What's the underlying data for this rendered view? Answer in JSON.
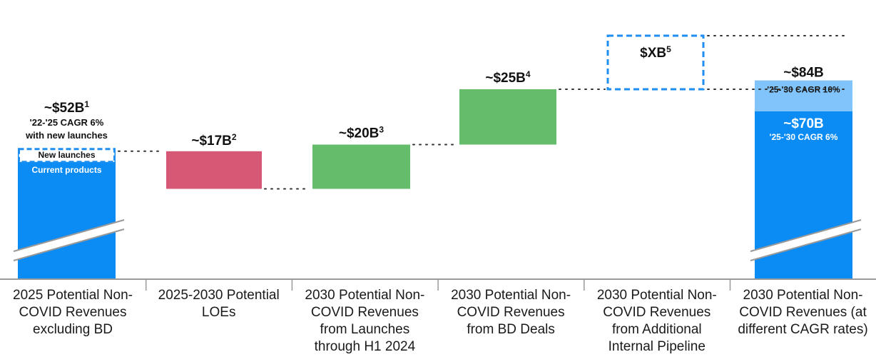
{
  "colors": {
    "blue": "#0b8cf5",
    "light_blue": "#80c4fb",
    "red": "#d75874",
    "green": "#65bd6c",
    "dashed": "#1e8ef0",
    "text": "#111111"
  },
  "chart_data": {
    "type": "waterfall",
    "units": "USD billions",
    "categories": [
      "2025 Potential Non-COVID Revenues excluding BD",
      "2025-2030 Potential LOEs",
      "2030 Potential Non-COVID Revenues from Launches through H1 2024",
      "2030 Potential Non-COVID Revenues from BD Deals",
      "2030 Potential Non-COVID Revenues from Additional Internal Pipeline",
      "2030 Potential Non-COVID Revenues (at different CAGR rates)"
    ],
    "category_lines": [
      [
        "2025 Potential Non-",
        "COVID Revenues",
        "excluding BD"
      ],
      [
        "2025-2030 Potential",
        "LOEs"
      ],
      [
        "2030 Potential Non-",
        "COVID Revenues",
        "from Launches",
        "through H1 2024"
      ],
      [
        "2030 Potential Non-",
        "COVID Revenues",
        "from BD Deals"
      ],
      [
        "2030 Potential Non-",
        "COVID Revenues",
        "from Additional",
        "Internal Pipeline"
      ],
      [
        "2030 Potential Non-",
        "COVID Revenues (at",
        "different CAGR rates)"
      ]
    ],
    "steps": [
      {
        "kind": "total",
        "value": 52,
        "label": "~$52B",
        "sup": "1",
        "note_lines": [
          "'22-'25 CAGR 6%",
          "with new launches"
        ],
        "segments": [
          "New launches",
          "Current products"
        ]
      },
      {
        "kind": "decrease",
        "value": -17,
        "label": "~$17B",
        "sup": "2"
      },
      {
        "kind": "increase",
        "value": 20,
        "label": "~$20B",
        "sup": "3"
      },
      {
        "kind": "increase",
        "value": 25,
        "label": "~$25B",
        "sup": "4"
      },
      {
        "kind": "unknown",
        "value": null,
        "label": "$XB",
        "sup": "5"
      },
      {
        "kind": "total",
        "value": 84,
        "label": "~$84B",
        "note": "'25-'30 CAGR 10%",
        "base_value": 70,
        "base_label": "~$70B",
        "base_note": "'25-'30 CAGR 6%"
      }
    ],
    "axis_break": true
  }
}
